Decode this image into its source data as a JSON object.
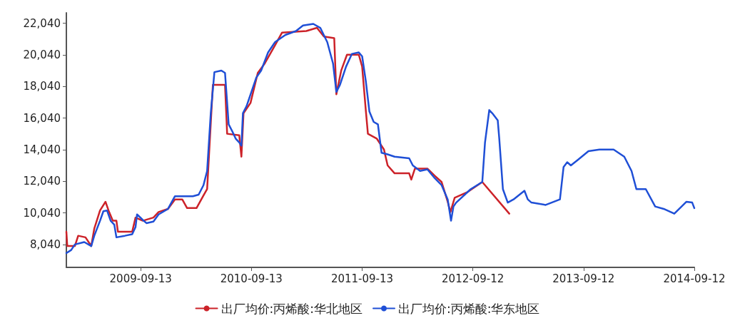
{
  "chart_data": {
    "type": "line",
    "marker": "none",
    "line_style": "solid",
    "grid": false,
    "legend": "bottom",
    "xlim": [
      "2009-01-11",
      "2014-09-12"
    ],
    "xticks": [
      {
        "value": "2009-09-13",
        "label": "2009-09-13"
      },
      {
        "value": "2010-09-13",
        "label": "2010-09-13"
      },
      {
        "value": "2011-09-13",
        "label": "2011-09-13"
      },
      {
        "value": "2012-09-12",
        "label": "2012-09-12"
      },
      {
        "value": "2013-09-12",
        "label": "2013-09-12"
      },
      {
        "value": "2014-09-12",
        "label": "2014-09-12"
      }
    ],
    "ylim": [
      6600,
      22700
    ],
    "yticks": [
      {
        "value": 8040,
        "label": "8,040"
      },
      {
        "value": 10040,
        "label": "10,040"
      },
      {
        "value": 12040,
        "label": "12,040"
      },
      {
        "value": 14040,
        "label": "14,040"
      },
      {
        "value": 16040,
        "label": "16,040"
      },
      {
        "value": 18040,
        "label": "18,040"
      },
      {
        "value": 20040,
        "label": "20,040"
      },
      {
        "value": 22040,
        "label": "22,040"
      }
    ],
    "series": [
      {
        "name": "出厂均价:丙烯酸:华北地区",
        "color": "#cc2229",
        "x": [
          "2009-01-11",
          "2009-01-14",
          "2009-02-08",
          "2009-02-19",
          "2009-03-15",
          "2009-04-03",
          "2009-04-13",
          "2009-05-02",
          "2009-05-20",
          "2009-05-30",
          "2009-06-13",
          "2009-06-25",
          "2009-06-30",
          "2009-08-16",
          "2009-08-27",
          "2009-09-20",
          "2009-10-25",
          "2009-11-11",
          "2009-12-12",
          "2010-01-04",
          "2010-01-28",
          "2010-02-13",
          "2010-03-16",
          "2010-04-08",
          "2010-04-20",
          "2010-05-09",
          "2010-06-18",
          "2010-06-25",
          "2010-08-04",
          "2010-08-11",
          "2010-08-18",
          "2010-09-10",
          "2010-10-04",
          "2010-10-27",
          "2010-11-30",
          "2010-12-23",
          "2011-03-13",
          "2011-04-17",
          "2011-05-10",
          "2011-06-13",
          "2011-06-20",
          "2011-07-06",
          "2011-07-25",
          "2011-09-02",
          "2011-09-13",
          "2011-09-25",
          "2011-10-02",
          "2011-10-31",
          "2011-11-24",
          "2011-12-06",
          "2011-12-29",
          "2012-02-15",
          "2012-02-22",
          "2012-03-05",
          "2012-04-15",
          "2012-05-09",
          "2012-06-01",
          "2012-06-21",
          "2012-06-30",
          "2012-07-14",
          "2012-08-24",
          "2012-10-13",
          "2013-01-10"
        ],
        "values": [
          8850,
          7950,
          7950,
          8600,
          8500,
          7950,
          9050,
          10200,
          10750,
          10200,
          9550,
          9550,
          8850,
          8850,
          9750,
          9550,
          9750,
          10100,
          10300,
          10900,
          10900,
          10350,
          10350,
          11150,
          11550,
          18150,
          18150,
          15050,
          14950,
          13600,
          16350,
          17000,
          18900,
          19500,
          20650,
          21450,
          21550,
          21750,
          21200,
          21100,
          17550,
          19050,
          20050,
          20050,
          19300,
          16550,
          15050,
          14750,
          14050,
          13050,
          12550,
          12550,
          12150,
          12850,
          12850,
          12400,
          12000,
          10750,
          10100,
          11000,
          11350,
          12000,
          10000
        ]
      },
      {
        "name": "出厂均价:丙烯酸:华东地区",
        "color": "#1f4fd6",
        "x": [
          "2009-01-11",
          "2009-01-27",
          "2009-02-08",
          "2009-03-11",
          "2009-04-03",
          "2009-04-13",
          "2009-05-02",
          "2009-05-13",
          "2009-05-25",
          "2009-06-06",
          "2009-06-18",
          "2009-06-25",
          "2009-07-23",
          "2009-08-16",
          "2009-08-27",
          "2009-09-01",
          "2009-09-20",
          "2009-10-02",
          "2009-10-25",
          "2009-11-11",
          "2009-12-12",
          "2010-01-04",
          "2010-03-04",
          "2010-03-23",
          "2010-04-08",
          "2010-04-20",
          "2010-05-02",
          "2010-05-14",
          "2010-06-06",
          "2010-06-18",
          "2010-06-30",
          "2010-07-12",
          "2010-07-23",
          "2010-08-04",
          "2010-08-11",
          "2010-08-16",
          "2010-08-28",
          "2010-09-29",
          "2010-10-15",
          "2010-11-07",
          "2010-11-30",
          "2011-01-03",
          "2011-02-07",
          "2011-03-02",
          "2011-04-05",
          "2011-04-28",
          "2011-05-21",
          "2011-06-09",
          "2011-06-20",
          "2011-07-02",
          "2011-07-22",
          "2011-08-10",
          "2011-09-02",
          "2011-09-13",
          "2011-09-25",
          "2011-10-07",
          "2011-10-21",
          "2011-11-04",
          "2011-11-16",
          "2011-12-06",
          "2011-12-29",
          "2012-02-15",
          "2012-02-27",
          "2012-03-22",
          "2012-04-15",
          "2012-05-09",
          "2012-06-01",
          "2012-06-21",
          "2012-07-02",
          "2012-07-10",
          "2012-07-19",
          "2012-09-05",
          "2012-10-13",
          "2012-10-22",
          "2012-11-05",
          "2012-11-15",
          "2012-12-03",
          "2012-12-08",
          "2012-12-20",
          "2013-01-05",
          "2013-01-24",
          "2013-03-01",
          "2013-03-12",
          "2013-03-24",
          "2013-05-10",
          "2013-06-26",
          "2013-07-08",
          "2013-07-20",
          "2013-08-01",
          "2013-08-24",
          "2013-09-28",
          "2013-11-03",
          "2013-12-20",
          "2014-01-24",
          "2014-02-17",
          "2014-03-05",
          "2014-04-05",
          "2014-05-06",
          "2014-06-03",
          "2014-07-08",
          "2014-08-01",
          "2014-08-17",
          "2014-09-05",
          "2014-09-12"
        ],
        "values": [
          7500,
          7700,
          8050,
          8200,
          7950,
          8600,
          9550,
          10150,
          10200,
          9550,
          9300,
          8500,
          8600,
          8700,
          9150,
          9950,
          9600,
          9400,
          9500,
          9950,
          10300,
          11100,
          11100,
          11200,
          11800,
          12700,
          16350,
          18950,
          19050,
          18900,
          15650,
          15200,
          14750,
          14500,
          14300,
          16350,
          16800,
          18600,
          19050,
          20200,
          20850,
          21300,
          21550,
          21900,
          22000,
          21750,
          20850,
          19500,
          17700,
          18150,
          19300,
          20100,
          20200,
          19950,
          18400,
          16450,
          15800,
          15650,
          13850,
          13750,
          13600,
          13500,
          13050,
          12700,
          12800,
          12250,
          11800,
          10900,
          9550,
          10450,
          10700,
          11550,
          12000,
          14500,
          16550,
          16350,
          15900,
          14750,
          11550,
          10700,
          10900,
          11450,
          10900,
          10700,
          10550,
          10900,
          12950,
          13250,
          13050,
          13400,
          13950,
          14050,
          14050,
          13600,
          12700,
          11550,
          11550,
          10450,
          10300,
          10000,
          10450,
          10750,
          10700,
          10350
        ]
      }
    ]
  }
}
